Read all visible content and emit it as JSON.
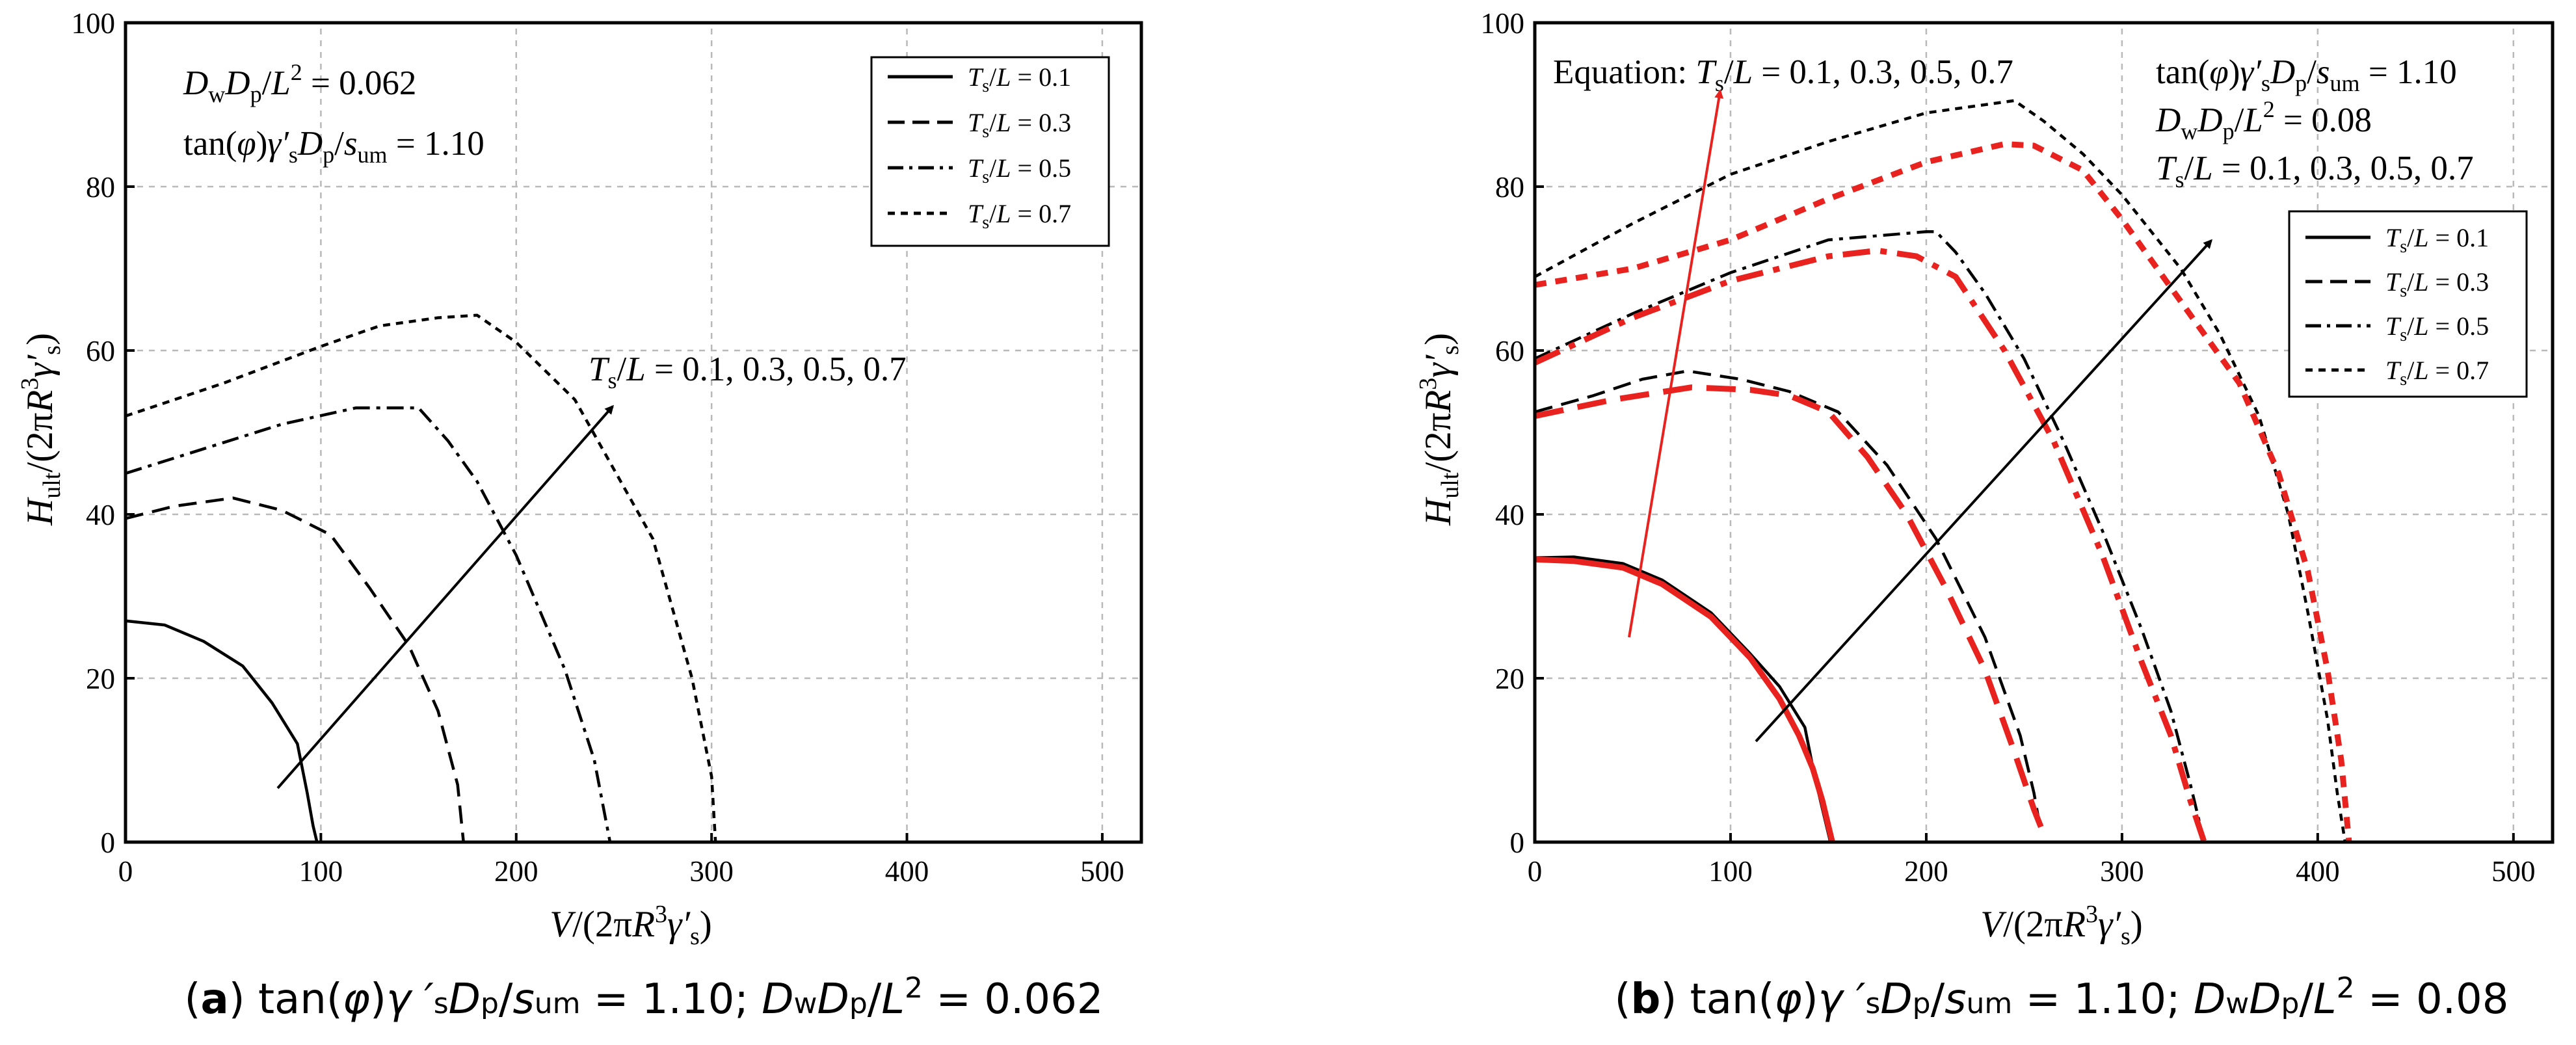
{
  "chart_data": [
    {
      "panel": "a",
      "type": "line",
      "caption": {
        "letter": "a",
        "text_after": "tan(φ)γ′sDp/sum = 1.10; DwDp/L2 = 0.062"
      },
      "xlabel": "V/(2πR3γ′s)",
      "ylabel": "Hult/(2πR3γ′s)",
      "xlim": [
        0,
        520
      ],
      "ylim": [
        0,
        100
      ],
      "xticks": [
        0,
        100,
        200,
        300,
        400,
        500
      ],
      "yticks": [
        0,
        20,
        40,
        60,
        80,
        100
      ],
      "grid": true,
      "legend_position": "top-right",
      "legend": [
        "Ts/L = 0.1",
        "Ts/L = 0.3",
        "Ts/L = 0.5",
        "Ts/L = 0.7"
      ],
      "annotations": {
        "param1": "DwDp/L2 = 0.062",
        "param2": "tan(φ)γ′sDp/sum = 1.10",
        "arrow_label": "Ts/L = 0.1, 0.3, 0.5, 0.7"
      },
      "series": [
        {
          "name": "Ts/L = 0.1",
          "style": "solid",
          "color": "#000000",
          "x": [
            0,
            20,
            40,
            60,
            75,
            88,
            93,
            96,
            98
          ],
          "y": [
            27,
            26.5,
            24.5,
            21.5,
            17,
            12,
            6,
            2,
            0
          ]
        },
        {
          "name": "Ts/L = 0.3",
          "style": "dash",
          "color": "#000000",
          "x": [
            0,
            25,
            55,
            80,
            105,
            125,
            145,
            160,
            170,
            173
          ],
          "y": [
            39.5,
            41,
            42,
            40.5,
            37.5,
            31,
            24,
            16,
            7,
            0
          ]
        },
        {
          "name": "Ts/L = 0.5",
          "style": "dashdot",
          "color": "#000000",
          "x": [
            0,
            40,
            80,
            118,
            140,
            150,
            165,
            180,
            200,
            225,
            240,
            248
          ],
          "y": [
            45,
            48,
            51,
            53,
            53,
            53,
            49,
            44,
            35,
            21,
            10,
            0
          ]
        },
        {
          "name": "Ts/L = 0.7",
          "style": "short-dash",
          "color": "#000000",
          "x": [
            0,
            50,
            100,
            130,
            160,
            180,
            200,
            230,
            270,
            290,
            300,
            302
          ],
          "y": [
            52,
            56,
            60.5,
            63,
            64,
            64.3,
            61,
            54,
            37,
            20,
            8,
            0
          ]
        }
      ]
    },
    {
      "panel": "b",
      "type": "line",
      "caption": {
        "letter": "b",
        "text_after": "tan(φ)γ′sDp/sum = 1.10; DwDp/L2 = 0.08"
      },
      "xlabel": "V/(2πR3γ′s)",
      "ylabel": "Hult/(2πR3γ′s)",
      "xlim": [
        0,
        520
      ],
      "ylim": [
        0,
        100
      ],
      "xticks": [
        0,
        100,
        200,
        300,
        400,
        500
      ],
      "yticks": [
        0,
        20,
        40,
        60,
        80,
        100
      ],
      "grid": true,
      "legend_position": "right",
      "legend": [
        "Ts/L = 0.1",
        "Ts/L = 0.3",
        "Ts/L = 0.5",
        "Ts/L = 0.7"
      ],
      "annotations": {
        "equation_label": "Equation: Ts/L = 0.1, 0.3, 0.5, 0.7",
        "param1": "tan(φ)γ′sDp/sum = 1.10",
        "param2": "DwDp/L2 = 0.08",
        "param3": "Ts/L = 0.1, 0.3, 0.5, 0.7"
      },
      "series": [
        {
          "name": "Ts/L = 0.1",
          "style": "solid",
          "color": "#000000",
          "x": [
            0,
            20,
            45,
            65,
            90,
            110,
            125,
            138,
            143,
            148,
            151
          ],
          "y": [
            34.7,
            34.8,
            34,
            32,
            28,
            23,
            19,
            14,
            8,
            3,
            0
          ]
        },
        {
          "name": "Ts/L = 0.3",
          "style": "dash",
          "color": "#000000",
          "x": [
            0,
            30,
            55,
            78,
            105,
            130,
            155,
            180,
            205,
            230,
            248,
            255,
            258
          ],
          "y": [
            52.5,
            54.5,
            56.5,
            57.5,
            56.5,
            55,
            52.5,
            46,
            37,
            25,
            13,
            6,
            2
          ]
        },
        {
          "name": "Ts/L = 0.5",
          "style": "dashdot",
          "color": "#000000",
          "x": [
            0,
            50,
            100,
            150,
            175,
            200,
            205,
            215,
            230,
            250,
            270,
            290,
            310,
            325,
            335,
            340
          ],
          "y": [
            59,
            64.5,
            69.5,
            73.5,
            74,
            74.5,
            74.5,
            72,
            67,
            59,
            49,
            38,
            26,
            16,
            7,
            2
          ]
        },
        {
          "name": "Ts/L = 0.7",
          "style": "short-dash",
          "color": "#000000",
          "x": [
            0,
            50,
            100,
            150,
            200,
            245,
            260,
            280,
            300,
            330,
            350,
            370,
            385,
            395,
            405,
            410,
            414
          ],
          "y": [
            69,
            75.5,
            81.5,
            85.5,
            89,
            90.5,
            88,
            84,
            79,
            70,
            62,
            52,
            40,
            28,
            15,
            6,
            0
          ]
        },
        {
          "name": "Ts/L = 0.1 (Equation)",
          "style": "solid",
          "color": "#e8231f",
          "x": [
            0,
            20,
            45,
            65,
            90,
            110,
            125,
            135,
            142,
            147,
            150,
            152
          ],
          "y": [
            34.5,
            34.3,
            33.5,
            31.5,
            27.5,
            22.5,
            17.5,
            13,
            9,
            5,
            2,
            0
          ]
        },
        {
          "name": "Ts/L = 0.3 (Equation)",
          "style": "dash",
          "color": "#e8231f",
          "x": [
            0,
            40,
            80,
            110,
            130,
            150,
            170,
            190,
            210,
            230,
            245,
            255,
            260
          ],
          "y": [
            52,
            54,
            55.5,
            55.2,
            54.5,
            52.5,
            47,
            40,
            31,
            21,
            11,
            4,
            1
          ]
        },
        {
          "name": "Ts/L = 0.5 (Equation)",
          "style": "dashdot",
          "color": "#e8231f",
          "x": [
            0,
            50,
            100,
            150,
            175,
            195,
            215,
            240,
            265,
            290,
            310,
            325,
            335,
            342
          ],
          "y": [
            58.5,
            64,
            68.5,
            71.5,
            72.2,
            71.5,
            69,
            60,
            49,
            35,
            22,
            13,
            5,
            0
          ]
        },
        {
          "name": "Ts/L = 0.7 (Equation)",
          "style": "short-dash",
          "color": "#e8231f",
          "x": [
            0,
            50,
            100,
            150,
            200,
            240,
            255,
            280,
            300,
            330,
            360,
            380,
            395,
            405,
            412,
            416
          ],
          "y": [
            68,
            70,
            73.5,
            78.5,
            83,
            85.2,
            85,
            82,
            76,
            66,
            56,
            45,
            33,
            21,
            10,
            0
          ]
        }
      ]
    }
  ]
}
